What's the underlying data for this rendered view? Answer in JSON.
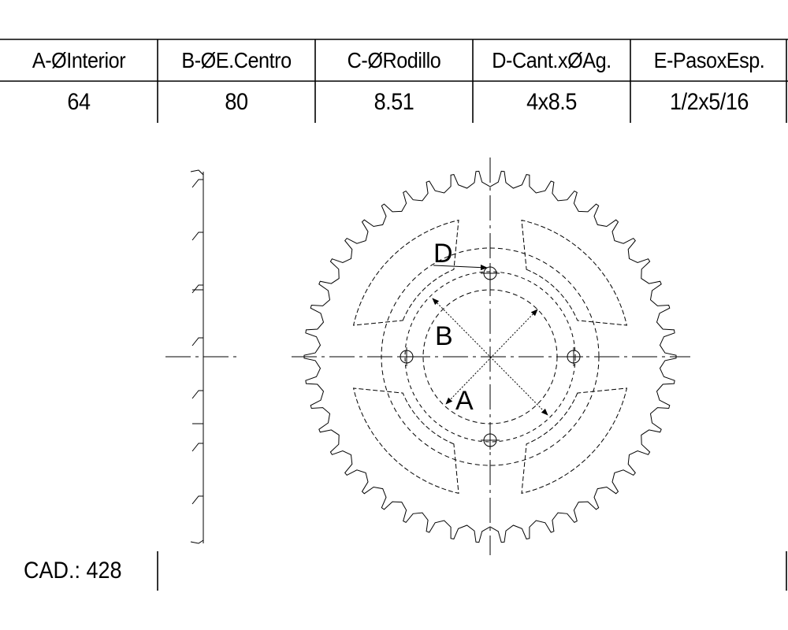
{
  "table": {
    "headers": [
      "A-ØInterior",
      "B-ØE.Centro",
      "C-ØRodillo",
      "D-Cant.xØAg.",
      "E-PasoxEsp."
    ],
    "values": [
      "64",
      "80",
      "8.51",
      "4x8.5",
      "1/2x5/16"
    ]
  },
  "cad": "CAD.: 428",
  "labels": {
    "a": "A",
    "b": "B",
    "d": "D"
  },
  "sprocket": {
    "teeth": 46,
    "bolt_holes": 4
  }
}
